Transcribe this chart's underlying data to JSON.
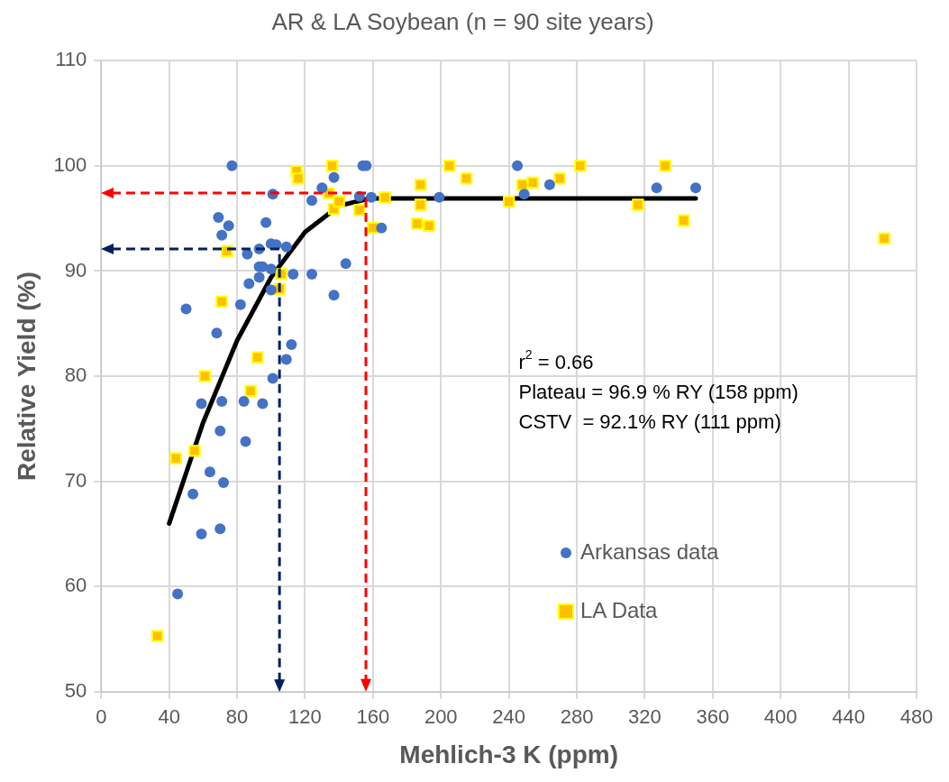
{
  "chart_data": {
    "type": "scatter",
    "title": "AR & LA Soybean (n = 90 site years)",
    "xlabel": "Mehlich-3 K (ppm)",
    "ylabel": "Relative Yield (%)",
    "xlim": [
      0,
      480
    ],
    "xticks": [
      0,
      40,
      80,
      120,
      160,
      200,
      240,
      280,
      320,
      360,
      400,
      440,
      480
    ],
    "ylim": [
      50,
      110
    ],
    "yticks": [
      50,
      60,
      70,
      80,
      90,
      100,
      110
    ],
    "grid": true,
    "legend": "bottom right",
    "annotations": [
      "r$^{2}$ = 0.66",
      "Plateau = 96.9 % RY (158 ppm)",
      "CSTV  = 92.1% RY (111 ppm)"
    ],
    "series": [
      {
        "name": "Arkansas data",
        "type": "scatter",
        "color": "#4472c4",
        "marker": "circle",
        "x": [
          77,
          154,
          156,
          137,
          130,
          101,
          124,
          152,
          159,
          165,
          69,
          75,
          71,
          97,
          86,
          93,
          100,
          103,
          109,
          93,
          95,
          100,
          113,
          124,
          93,
          144,
          87,
          100,
          137,
          50,
          82,
          68,
          112,
          109,
          101,
          59,
          71,
          84,
          95,
          70,
          85,
          64,
          72,
          54,
          59,
          70,
          45,
          245,
          199,
          249,
          264,
          327,
          350
        ],
        "values": [
          100,
          100,
          100,
          98.9,
          97.9,
          97.3,
          96.7,
          97.1,
          97,
          94.1,
          95.1,
          94.3,
          93.4,
          94.6,
          91.6,
          92.1,
          92.6,
          92.5,
          92.3,
          90.4,
          90.4,
          90.2,
          89.7,
          89.7,
          89.4,
          90.7,
          88.8,
          88.2,
          87.7,
          86.4,
          86.8,
          84.1,
          83,
          81.6,
          79.8,
          77.4,
          77.6,
          77.6,
          77.4,
          74.8,
          73.8,
          70.9,
          69.9,
          68.8,
          65,
          65.5,
          59.3,
          100,
          97,
          97.3,
          98.2,
          97.9,
          97.9
        ]
      },
      {
        "name": "LA Data",
        "type": "scatter",
        "color": "#ffc000",
        "marker": "square",
        "x": [
          115,
          116,
          136,
          134,
          137,
          140,
          152,
          160,
          167,
          74,
          106,
          105,
          71,
          92,
          61,
          88,
          55,
          44,
          33,
          205,
          215,
          188,
          188,
          186,
          193,
          240,
          254,
          248,
          270,
          282,
          332,
          316,
          343,
          461
        ],
        "values": [
          99.5,
          98.8,
          100,
          97.4,
          95.9,
          96.6,
          95.8,
          94.1,
          97,
          91.9,
          89.7,
          88.3,
          87.1,
          81.8,
          80,
          78.6,
          72.9,
          72.2,
          55.3,
          100,
          98.8,
          98.2,
          96.3,
          94.5,
          94.3,
          96.6,
          98.4,
          98.2,
          98.8,
          100,
          100,
          96.3,
          94.8,
          93.1
        ]
      },
      {
        "type": "line",
        "color": "#000000",
        "marker": "none",
        "line_style": "solid",
        "x": [
          40,
          60,
          80,
          100,
          120,
          140,
          158,
          350
        ],
        "values": [
          66,
          75.6,
          83.4,
          89.4,
          93.7,
          96.2,
          96.9,
          96.9
        ]
      }
    ]
  }
}
